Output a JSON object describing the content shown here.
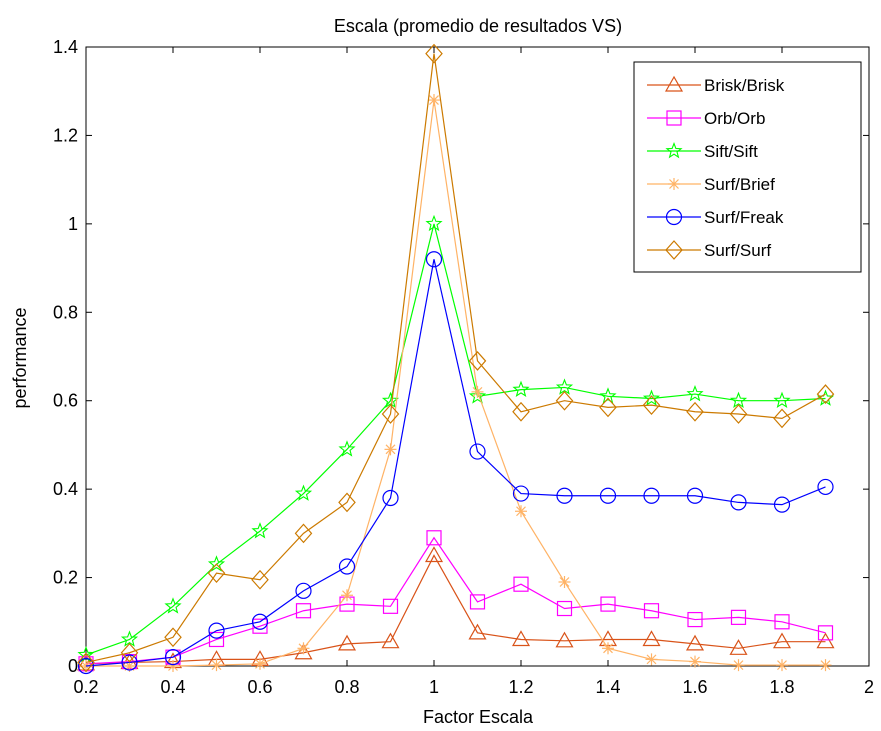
{
  "chart_data": {
    "type": "line",
    "title": "Escala (promedio de resultados VS)",
    "xlabel": "Factor Escala",
    "ylabel": "performance",
    "xlim": [
      0.2,
      2.0
    ],
    "ylim": [
      0,
      1.4
    ],
    "xticks": [
      0.2,
      0.4,
      0.6,
      0.8,
      1.0,
      1.2,
      1.4,
      1.6,
      1.8,
      2.0
    ],
    "xtick_labels": [
      "0.2",
      "0.4",
      "0.6",
      "0.8",
      "1",
      "1.2",
      "1.4",
      "1.6",
      "1.8",
      "2"
    ],
    "yticks": [
      0,
      0.2,
      0.4,
      0.6,
      0.8,
      1.0,
      1.2,
      1.4
    ],
    "ytick_labels": [
      "0",
      "0.2",
      "0.4",
      "0.6",
      "0.8",
      "1",
      "1.2",
      "1.4"
    ],
    "grid": false,
    "legend_position": "top-right",
    "x": [
      0.2,
      0.3,
      0.4,
      0.5,
      0.6,
      0.7,
      0.8,
      0.9,
      1.0,
      1.1,
      1.2,
      1.3,
      1.4,
      1.5,
      1.6,
      1.7,
      1.8,
      1.9
    ],
    "series": [
      {
        "name": "Brisk/Brisk",
        "color": "#d95319",
        "marker": "triangle",
        "values": [
          0.005,
          0.008,
          0.01,
          0.015,
          0.015,
          0.03,
          0.05,
          0.055,
          0.25,
          0.075,
          0.06,
          0.057,
          0.06,
          0.06,
          0.05,
          0.04,
          0.055,
          0.055
        ]
      },
      {
        "name": "Orb/Orb",
        "color": "#ff00ff",
        "marker": "square",
        "values": [
          0.005,
          0.01,
          0.02,
          0.06,
          0.09,
          0.125,
          0.14,
          0.135,
          0.29,
          0.145,
          0.185,
          0.13,
          0.14,
          0.125,
          0.105,
          0.11,
          0.1,
          0.075
        ]
      },
      {
        "name": "Sift/Sift",
        "color": "#00ff00",
        "marker": "star",
        "values": [
          0.025,
          0.06,
          0.135,
          0.23,
          0.305,
          0.39,
          0.49,
          0.6,
          1.0,
          0.61,
          0.625,
          0.63,
          0.61,
          0.605,
          0.615,
          0.6,
          0.6,
          0.605
        ]
      },
      {
        "name": "Surf/Brief",
        "color": "#ffb366",
        "marker": "asterisk",
        "values": [
          0.0,
          0.0,
          0.0,
          0.002,
          0.005,
          0.04,
          0.16,
          0.49,
          1.28,
          0.62,
          0.35,
          0.19,
          0.04,
          0.015,
          0.01,
          0.002,
          0.002,
          0.002
        ]
      },
      {
        "name": "Surf/Freak",
        "color": "#0000ff",
        "marker": "circle",
        "values": [
          0.0,
          0.008,
          0.02,
          0.08,
          0.1,
          0.17,
          0.225,
          0.38,
          0.92,
          0.485,
          0.39,
          0.385,
          0.385,
          0.385,
          0.385,
          0.37,
          0.365,
          0.405
        ]
      },
      {
        "name": "Surf/Surf",
        "color": "#cc7a00",
        "marker": "diamond",
        "values": [
          0.008,
          0.03,
          0.065,
          0.21,
          0.195,
          0.3,
          0.37,
          0.57,
          1.385,
          0.69,
          0.575,
          0.6,
          0.585,
          0.59,
          0.575,
          0.57,
          0.56,
          0.615
        ]
      }
    ]
  }
}
